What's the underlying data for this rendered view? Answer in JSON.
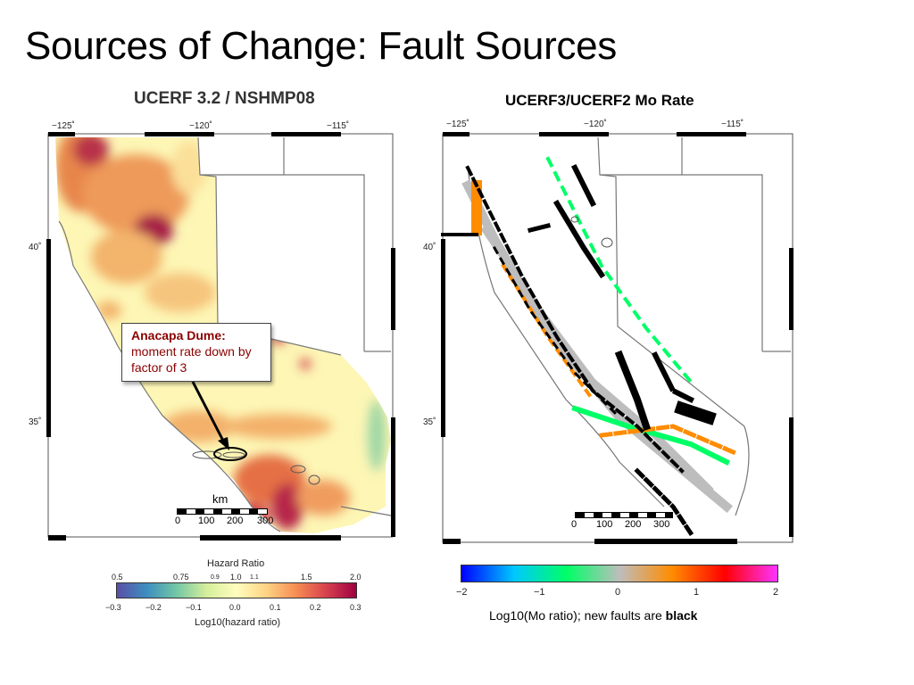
{
  "slide": {
    "title": "Sources of Change: Fault Sources"
  },
  "left_map": {
    "title": "UCERF 3.2 / NSHMP08",
    "lon_ticks": [
      "−125˚",
      "−120˚",
      "−115˚"
    ],
    "lat_ticks": [
      "40˚",
      "35˚"
    ],
    "callout": {
      "heading": "Anacapa Dume:",
      "body": "moment rate down by factor of 3"
    },
    "scale": {
      "unit": "km",
      "ticks": [
        "0",
        "100",
        "200",
        "300"
      ]
    },
    "colorbar": {
      "title": "Hazard Ratio",
      "top_ticks": [
        "0.5",
        "0.75",
        "0.9",
        "1.0",
        "1.1",
        "1.5",
        "2.0"
      ],
      "bottom_ticks": [
        "−0.3",
        "−0.2",
        "−0.1",
        "0.0",
        "0.1",
        "0.2",
        "0.3"
      ],
      "xlabel": "Log10(hazard ratio)",
      "colors": [
        "#5a4fa6",
        "#3d8fbf",
        "#74c7a5",
        "#d6ee9b",
        "#fffdbe",
        "#fdd384",
        "#f68c52",
        "#d7414e",
        "#9e0142"
      ]
    }
  },
  "right_map": {
    "title": "UCERF3/UCERF2 Mo Rate",
    "lon_ticks": [
      "−125˚",
      "−120˚",
      "−115˚"
    ],
    "lat_ticks": [
      "40˚",
      "35˚"
    ],
    "scale": {
      "ticks": [
        "0",
        "100",
        "200",
        "300"
      ]
    },
    "colorbar": {
      "ticks": [
        "−2",
        "−1",
        "0",
        "1",
        "2"
      ],
      "colors": [
        "#0000ff",
        "#00c8ff",
        "#00ff66",
        "#bdbdbd",
        "#ff8c00",
        "#ff0000",
        "#ff33ff"
      ],
      "caption_prefix": "Log10(Mo ratio); new faults are",
      "caption_bold": "black"
    }
  }
}
